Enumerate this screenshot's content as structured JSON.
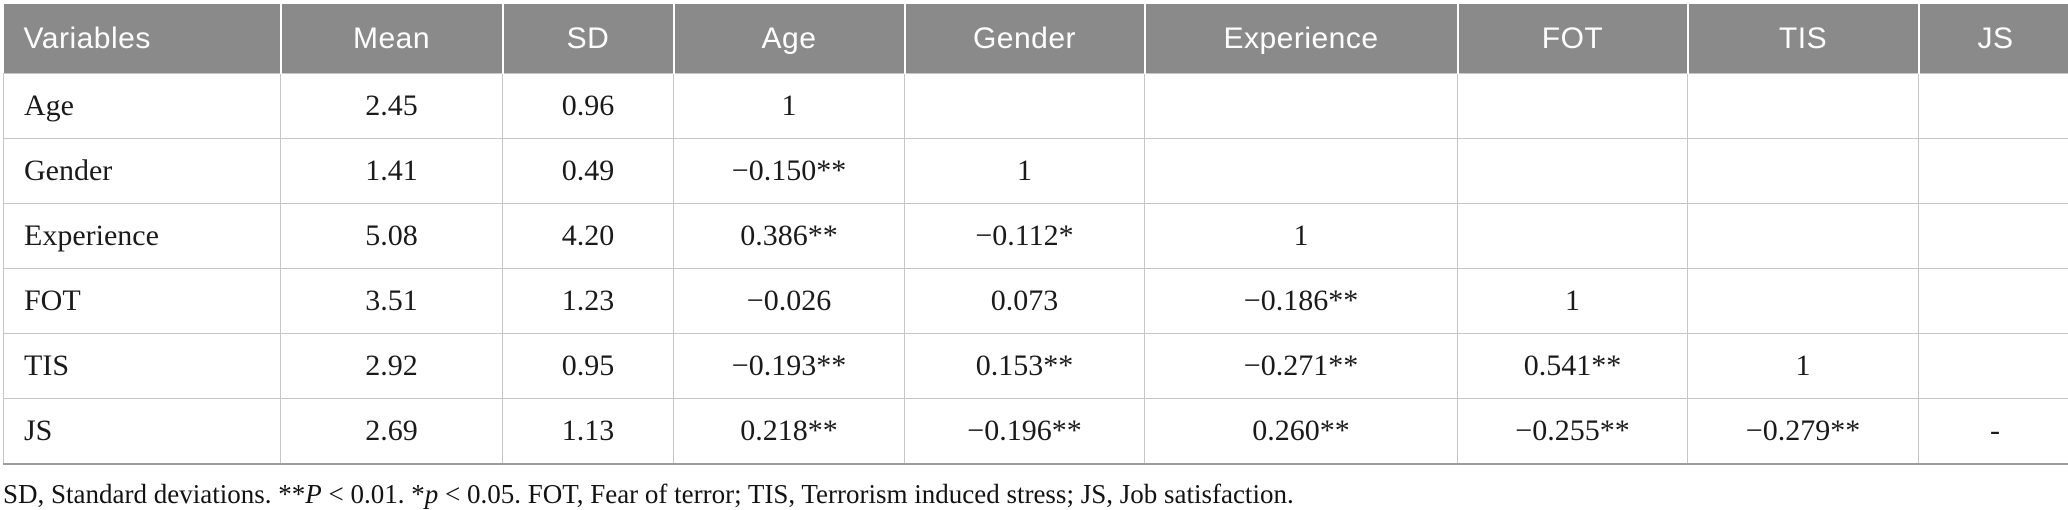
{
  "colors": {
    "header_bg": "#8a8a8a",
    "header_text": "#fdfdfd",
    "body_text": "#1a1a1a",
    "grid_border": "#c6c6c6"
  },
  "table": {
    "columns": [
      {
        "label": "Variables"
      },
      {
        "label": "Mean"
      },
      {
        "label": "SD"
      },
      {
        "label": "Age"
      },
      {
        "label": "Gender"
      },
      {
        "label": "Experience"
      },
      {
        "label": "FOT"
      },
      {
        "label": "TIS"
      },
      {
        "label": "JS"
      }
    ],
    "rows": [
      {
        "variable": "Age",
        "cells": [
          "2.45",
          "0.96",
          "1",
          "",
          "",
          "",
          "",
          ""
        ]
      },
      {
        "variable": "Gender",
        "cells": [
          "1.41",
          "0.49",
          "−0.150**",
          "1",
          "",
          "",
          "",
          ""
        ]
      },
      {
        "variable": "Experience",
        "cells": [
          "5.08",
          "4.20",
          "0.386**",
          "−0.112*",
          "1",
          "",
          "",
          ""
        ]
      },
      {
        "variable": "FOT",
        "cells": [
          "3.51",
          "1.23",
          "−0.026",
          "0.073",
          "−0.186**",
          "1",
          "",
          ""
        ]
      },
      {
        "variable": "TIS",
        "cells": [
          "2.92",
          "0.95",
          "−0.193**",
          "0.153**",
          "−0.271**",
          "0.541**",
          "1",
          ""
        ]
      },
      {
        "variable": "JS",
        "cells": [
          "2.69",
          "1.13",
          "0.218**",
          "−0.196**",
          "0.260**",
          "−0.255**",
          "−0.279**",
          "-"
        ]
      }
    ]
  },
  "footnote": {
    "segments": [
      {
        "text": "SD, Standard deviations. **"
      },
      {
        "text": "P",
        "italic": true
      },
      {
        "text": " < 0.01. *"
      },
      {
        "text": "p",
        "italic": true
      },
      {
        "text": " < 0.05. FOT, Fear of terror; TIS, Terrorism induced stress; JS, Job satisfaction."
      }
    ]
  }
}
